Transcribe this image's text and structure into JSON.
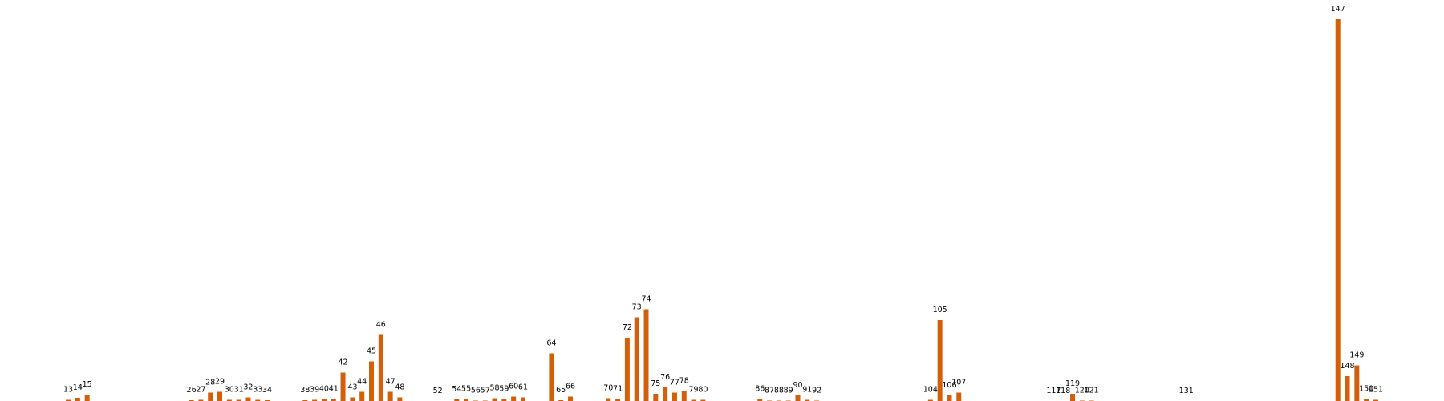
{
  "chart_data": {
    "type": "bar",
    "color": "#d35f0a",
    "x": [
      13,
      14,
      15,
      26,
      27,
      28,
      29,
      30,
      31,
      32,
      33,
      34,
      38,
      39,
      40,
      41,
      42,
      43,
      44,
      45,
      46,
      47,
      48,
      52,
      54,
      55,
      56,
      57,
      58,
      59,
      60,
      61,
      64,
      65,
      66,
      70,
      71,
      72,
      73,
      74,
      75,
      76,
      77,
      78,
      79,
      80,
      86,
      87,
      88,
      89,
      90,
      91,
      92,
      104,
      105,
      106,
      107,
      117,
      118,
      119,
      120,
      121,
      131,
      147,
      148,
      149,
      150,
      151
    ],
    "values": [
      0.3,
      0.8,
      1.6,
      0.2,
      0.3,
      2.1,
      2.3,
      0.3,
      0.3,
      0.9,
      0.3,
      0.2,
      0.2,
      0.3,
      0.5,
      0.5,
      7.1,
      0.9,
      2.3,
      9.9,
      16.5,
      2.3,
      0.9,
      0,
      0.4,
      0.5,
      0.1,
      0.1,
      0.7,
      0.5,
      1.1,
      0.9,
      11.9,
      0.2,
      1.1,
      0.7,
      0.5,
      15.8,
      20.9,
      22.9,
      1.8,
      3.4,
      2.1,
      2.5,
      0.3,
      0.3,
      0.5,
      0.1,
      0.1,
      0.1,
      1.4,
      0.3,
      0.1,
      0.3,
      20.2,
      1.4,
      2.1,
      0,
      0,
      1.8,
      0.1,
      0.1,
      0,
      95.2,
      6.2,
      8.9,
      0.5,
      0.3
    ],
    "xlim": [
      5.8,
      158.2
    ],
    "ylim": [
      0,
      100
    ]
  }
}
